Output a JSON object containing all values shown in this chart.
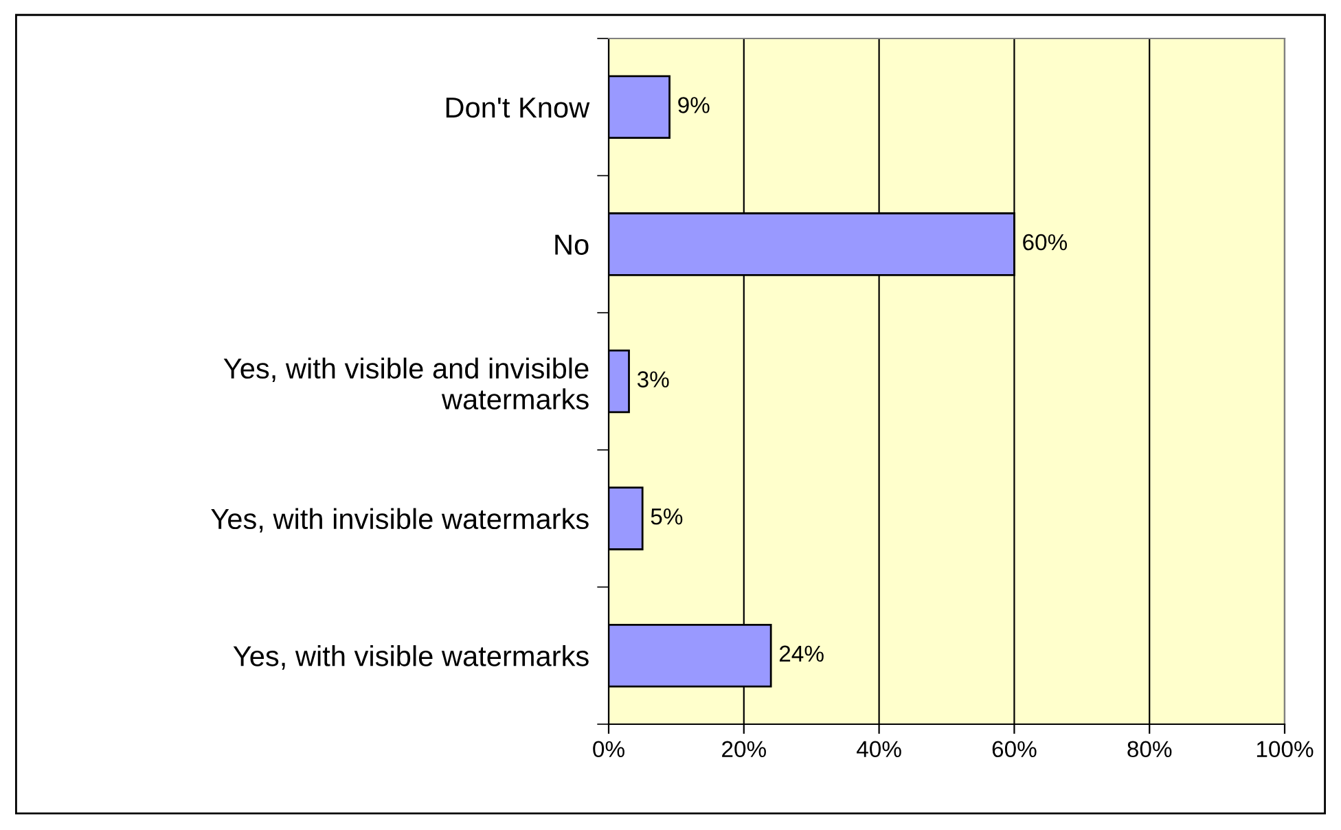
{
  "chart_data": {
    "type": "bar",
    "orientation": "horizontal",
    "categories": [
      "Don't Know",
      "No",
      "Yes, with visible and invisible\nwatermarks",
      "Yes, with invisible watermarks",
      "Yes, with visible watermarks"
    ],
    "values": [
      9,
      60,
      3,
      5,
      24
    ],
    "value_labels": [
      "9%",
      "60%",
      "3%",
      "5%",
      "24%"
    ],
    "color": "#9999ff",
    "xlim": [
      0,
      100
    ],
    "xticks": [
      {
        "value": 0,
        "label": "0%"
      },
      {
        "value": 20,
        "label": "20%"
      },
      {
        "value": 40,
        "label": "40%"
      },
      {
        "value": 60,
        "label": "60%"
      },
      {
        "value": 80,
        "label": "80%"
      },
      {
        "value": 100,
        "label": "100%"
      }
    ],
    "grid": "x",
    "legend": false
  }
}
